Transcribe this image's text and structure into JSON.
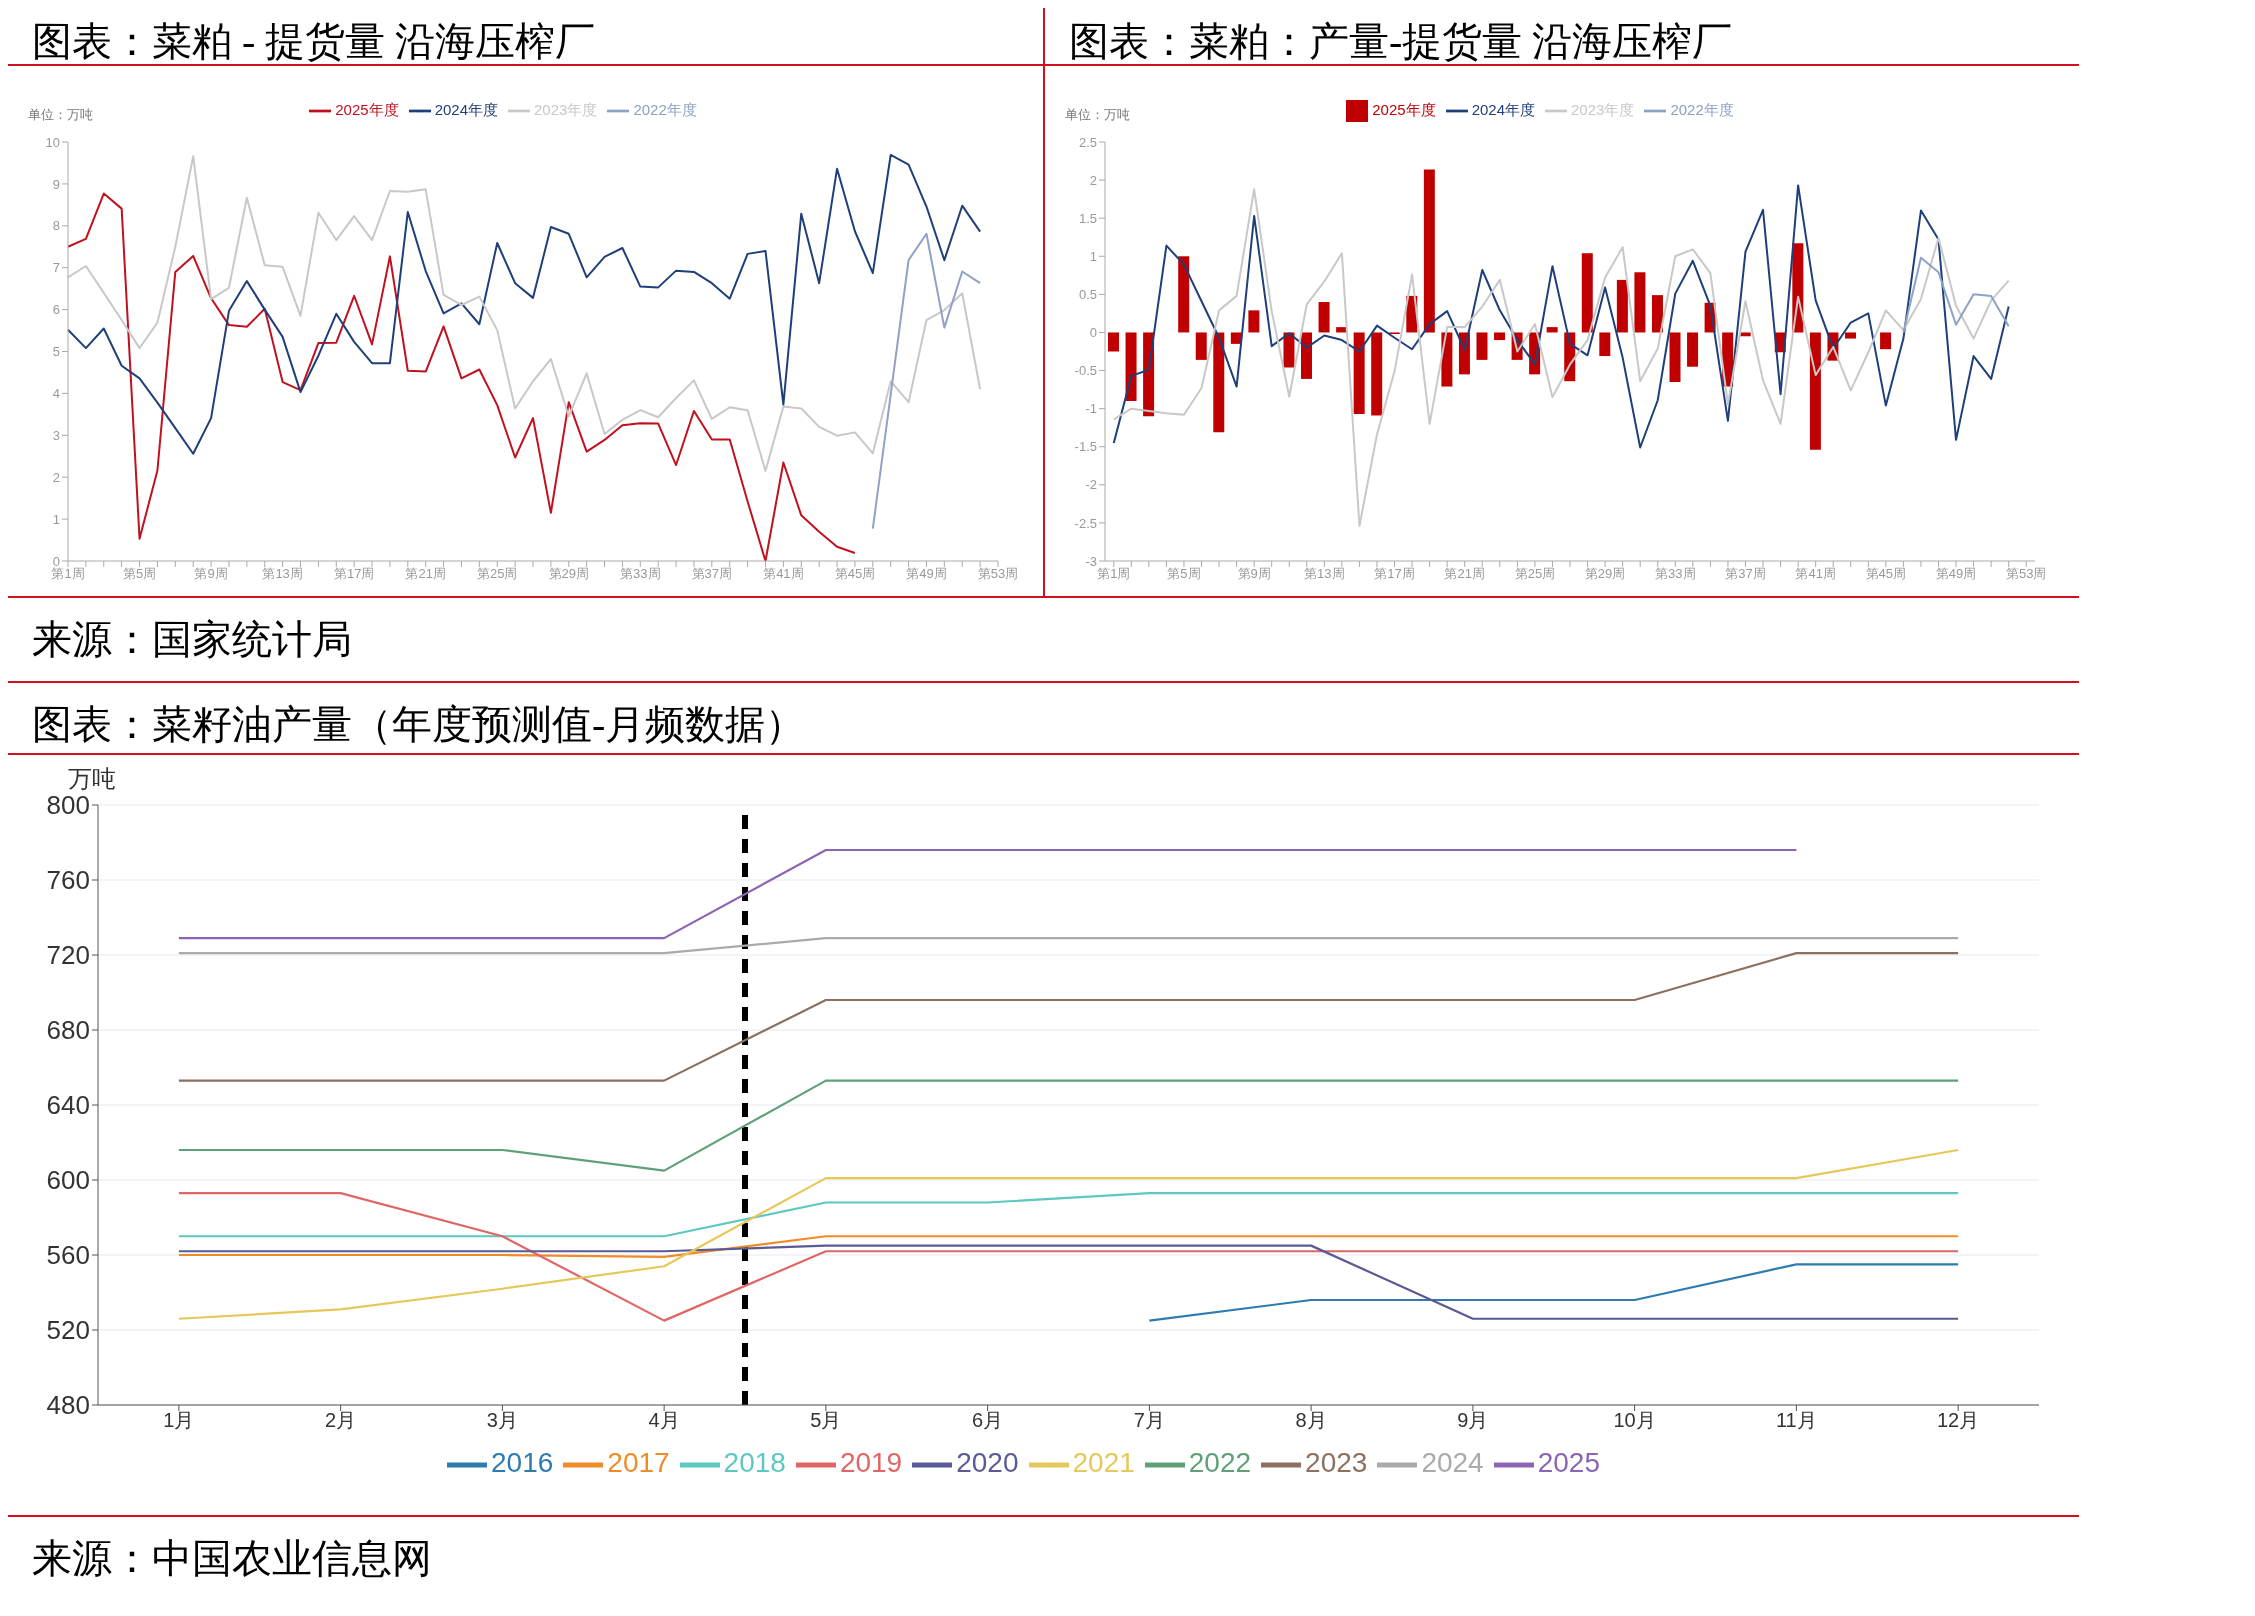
{
  "chart_data": [
    {
      "type": "line",
      "title": "图表：菜粕 - 提货量 沿海压榨厂",
      "ylabel": "单位：万吨",
      "legend": "top",
      "marker": "none",
      "categories": [
        "第1周",
        null,
        null,
        null,
        "第5周",
        null,
        null,
        null,
        "第9周",
        null,
        null,
        null,
        "第13周",
        null,
        null,
        null,
        "第17周",
        null,
        null,
        null,
        "第21周",
        null,
        null,
        null,
        "第25周",
        null,
        null,
        null,
        "第29周",
        null,
        null,
        null,
        "第33周",
        null,
        null,
        null,
        "第37周",
        null,
        null,
        null,
        "第41周",
        null,
        null,
        null,
        "第45周",
        null,
        null,
        null,
        "第49周",
        null,
        null,
        null,
        "第53周"
      ],
      "ylim": [
        0,
        10
      ],
      "yticks": [
        0,
        1,
        2,
        3,
        4,
        5,
        6,
        7,
        8,
        9,
        10
      ],
      "annotations": [
        "来源：国家统计局"
      ],
      "series": [
        {
          "name": "2025年度",
          "color": "#c0111f",
          "values": [
            7.5,
            7.69,
            8.77,
            8.41,
            0.53,
            2.16,
            6.9,
            7.28,
            6.27,
            5.63,
            5.59,
            6.02,
            4.27,
            4.08,
            5.2,
            5.21,
            6.33,
            5.17,
            7.27,
            4.54,
            4.52,
            5.6,
            4.36,
            4.57,
            3.72,
            2.47,
            3.41,
            1.15,
            3.79,
            2.61,
            2.89,
            3.24,
            3.29,
            3.28,
            2.29,
            3.58,
            2.9,
            2.9,
            1.42,
            0,
            2.35,
            1.09,
            0.7,
            0.34,
            0.19,
            null,
            null,
            null,
            null,
            null,
            null,
            null,
            null
          ]
        },
        {
          "name": "2024年度",
          "color": "#1f3f7a",
          "values": [
            5.52,
            5.08,
            5.55,
            4.66,
            4.36,
            3.78,
            3.17,
            2.56,
            3.41,
            5.97,
            6.68,
            6.0,
            5.35,
            4.03,
            4.9,
            5.9,
            5.23,
            4.72,
            4.72,
            8.33,
            6.92,
            5.91,
            6.15,
            5.65,
            7.59,
            6.63,
            6.28,
            7.97,
            7.81,
            6.77,
            7.26,
            7.47,
            6.55,
            6.53,
            6.93,
            6.9,
            6.63,
            6.26,
            7.33,
            7.4,
            3.73,
            8.29,
            6.63,
            9.36,
            7.87,
            6.87,
            9.69,
            9.46,
            8.46,
            7.18,
            8.48,
            7.86,
            null
          ]
        },
        {
          "name": "2023年度",
          "color": "#c8c8c8",
          "values": [
            6.77,
            7.04,
            6.4,
            5.75,
            5.08,
            5.69,
            7.5,
            9.66,
            6.25,
            6.52,
            8.67,
            7.06,
            7.02,
            5.85,
            8.31,
            7.66,
            8.23,
            7.66,
            8.83,
            8.81,
            8.87,
            6.35,
            6.11,
            6.31,
            5.51,
            3.64,
            4.29,
            4.82,
            3.45,
            4.48,
            3.03,
            3.37,
            3.6,
            3.43,
            3.89,
            4.31,
            3.39,
            3.67,
            3.6,
            2.15,
            3.69,
            3.64,
            3.2,
            2.99,
            3.07,
            2.57,
            4.29,
            3.79,
            5.75,
            5.99,
            6.39,
            4.1,
            null
          ]
        },
        {
          "name": "2022年度",
          "color": "#8ea2c6",
          "values": [
            null,
            null,
            null,
            null,
            null,
            null,
            null,
            null,
            null,
            null,
            null,
            null,
            null,
            null,
            null,
            null,
            null,
            null,
            null,
            null,
            null,
            null,
            null,
            null,
            null,
            null,
            null,
            null,
            null,
            null,
            null,
            null,
            null,
            null,
            null,
            null,
            null,
            null,
            null,
            null,
            null,
            null,
            null,
            null,
            null,
            0.77,
            3.97,
            7.18,
            7.81,
            5.57,
            6.91,
            6.63,
            null
          ]
        }
      ]
    },
    {
      "type": "bar",
      "title": "图表：菜粕：产量-提货量 沿海压榨厂",
      "ylabel": "单位：万吨",
      "legend": "top",
      "marker": "none",
      "categories": [
        "第1周",
        null,
        null,
        null,
        "第5周",
        null,
        null,
        null,
        "第9周",
        null,
        null,
        null,
        "第13周",
        null,
        null,
        null,
        "第17周",
        null,
        null,
        null,
        "第21周",
        null,
        null,
        null,
        "第25周",
        null,
        null,
        null,
        "第29周",
        null,
        null,
        null,
        "第33周",
        null,
        null,
        null,
        "第37周",
        null,
        null,
        null,
        "第41周",
        null,
        null,
        null,
        "第45周",
        null,
        null,
        null,
        "第49周",
        null,
        null,
        null,
        "第53周"
      ],
      "ylim": [
        -3,
        2.5
      ],
      "yticks": [
        -3,
        -2.5,
        -2,
        -1.5,
        -1,
        -0.5,
        0,
        0.5,
        1,
        1.5,
        2,
        2.5
      ],
      "series": [
        {
          "name": "2025年度",
          "color": "#c00000",
          "values": [
            -0.25,
            -0.9,
            -1.1,
            null,
            1.0,
            -0.36,
            -1.31,
            -0.15,
            0.29,
            null,
            -0.46,
            -0.61,
            0.4,
            0.07,
            -1.07,
            -1.09,
            -0.02,
            0.48,
            2.14,
            -0.71,
            -0.55,
            -0.36,
            -0.1,
            -0.36,
            -0.55,
            0.07,
            -0.64,
            1.04,
            -0.31,
            0.69,
            0.79,
            0.49,
            -0.65,
            -0.45,
            0.39,
            -0.71,
            -0.05,
            null,
            -0.26,
            1.17,
            -1.54,
            -0.37,
            -0.08,
            null,
            -0.22,
            null,
            null,
            null,
            null,
            null,
            null,
            null,
            null
          ]
        },
        {
          "name": "2024年度",
          "type": "line",
          "color": "#1f3f7a",
          "values": [
            -1.45,
            -0.57,
            -0.49,
            1.14,
            0.89,
            0.41,
            -0.07,
            -0.71,
            1.53,
            -0.18,
            -0.01,
            -0.2,
            -0.04,
            -0.1,
            -0.25,
            0.09,
            -0.07,
            -0.22,
            0.11,
            0.28,
            -0.23,
            0.82,
            0.29,
            -0.1,
            -0.42,
            0.87,
            -0.15,
            -0.3,
            0.59,
            -0.33,
            -1.51,
            -0.89,
            0.51,
            0.94,
            0.35,
            -1.16,
            1.06,
            1.61,
            -0.81,
            1.93,
            0.42,
            -0.21,
            0.13,
            0.25,
            -0.96,
            -0.08,
            1.6,
            1.22,
            -1.41,
            -0.31,
            -0.61,
            0.34,
            null
          ]
        },
        {
          "name": "2023年度",
          "type": "line",
          "color": "#c8c8c8",
          "values": [
            -1.14,
            -1.0,
            -1.03,
            -1.06,
            -1.08,
            -0.73,
            0.29,
            0.48,
            1.88,
            0.28,
            -0.84,
            0.37,
            0.67,
            1.04,
            -2.54,
            -1.34,
            -0.51,
            0.76,
            -1.2,
            0.07,
            0.07,
            0.34,
            0.69,
            -0.25,
            0.11,
            -0.85,
            -0.42,
            -0.1,
            0.72,
            1.12,
            -0.64,
            -0.21,
            1.0,
            1.09,
            0.78,
            -0.94,
            0.41,
            -0.63,
            -1.2,
            0.47,
            -0.56,
            -0.19,
            -0.76,
            -0.26,
            0.29,
            0.03,
            0.44,
            1.24,
            0.35,
            -0.08,
            0.42,
            0.68,
            null
          ]
        },
        {
          "name": "2022年度",
          "type": "line",
          "color": "#8ea2c6",
          "values": [
            null,
            null,
            null,
            null,
            null,
            null,
            null,
            null,
            null,
            null,
            null,
            null,
            null,
            null,
            null,
            null,
            null,
            null,
            null,
            null,
            null,
            null,
            null,
            null,
            null,
            null,
            null,
            null,
            null,
            null,
            null,
            null,
            null,
            null,
            null,
            null,
            null,
            null,
            null,
            null,
            null,
            null,
            null,
            null,
            null,
            0.0,
            0.98,
            0.79,
            0.1,
            0.5,
            0.48,
            0.08,
            null
          ]
        }
      ]
    },
    {
      "type": "line",
      "title": "图表：菜籽油产量（年度预测值-月频数据）",
      "ylabel": "万吨",
      "legend": "bottom",
      "marker": "none",
      "grid": "y",
      "x": [
        1,
        2,
        3,
        4,
        5,
        6,
        7,
        8,
        9,
        10,
        11,
        12
      ],
      "xlim": [
        0.5,
        12.5
      ],
      "xticks": [
        {
          "value": 1,
          "label": "1月"
        },
        {
          "value": 2,
          "label": "2月"
        },
        {
          "value": 3,
          "label": "3月"
        },
        {
          "value": 4,
          "label": "4月"
        },
        {
          "value": 5,
          "label": "5月"
        },
        {
          "value": 6,
          "label": "6月"
        },
        {
          "value": 7,
          "label": "7月"
        },
        {
          "value": 8,
          "label": "8月"
        },
        {
          "value": 9,
          "label": "9月"
        },
        {
          "value": 10,
          "label": "10月"
        },
        {
          "value": 11,
          "label": "11月"
        },
        {
          "value": 12,
          "label": "12月"
        }
      ],
      "ylim": [
        480,
        800
      ],
      "yticks": [
        480,
        520,
        560,
        600,
        640,
        680,
        720,
        760,
        800
      ],
      "ref_lines": [
        {
          "axis": "x",
          "value": 4.5,
          "color": "#000000",
          "line_style": "dashed"
        }
      ],
      "annotations": [
        "来源：中国农业信息网"
      ],
      "series": [
        {
          "name": "2016",
          "color": "#2e7bb0",
          "values": [
            null,
            null,
            null,
            null,
            null,
            null,
            525,
            536,
            536,
            536,
            555,
            555
          ]
        },
        {
          "name": "2017",
          "color": "#f08c28",
          "values": [
            560,
            560,
            560,
            559,
            570,
            570,
            570,
            570,
            570,
            570,
            570,
            570
          ]
        },
        {
          "name": "2018",
          "color": "#5cc8c0",
          "values": [
            570,
            570,
            570,
            570,
            588,
            588,
            593,
            593,
            593,
            593,
            593,
            593
          ]
        },
        {
          "name": "2019",
          "color": "#e06666",
          "values": [
            593,
            593,
            570,
            525,
            562,
            562,
            562,
            562,
            562,
            562,
            562,
            562
          ]
        },
        {
          "name": "2020",
          "color": "#5a5a96",
          "values": [
            562,
            562,
            562,
            562,
            565,
            565,
            565,
            565,
            526,
            526,
            526,
            526
          ]
        },
        {
          "name": "2021",
          "color": "#e6c85a",
          "values": [
            526,
            531,
            542,
            554,
            601,
            601,
            601,
            601,
            601,
            601,
            601,
            616
          ]
        },
        {
          "name": "2022",
          "color": "#5fa078",
          "values": [
            616,
            616,
            616,
            605,
            653,
            653,
            653,
            653,
            653,
            653,
            653,
            653
          ]
        },
        {
          "name": "2023",
          "color": "#8c7060",
          "values": [
            653,
            653,
            653,
            653,
            696,
            696,
            696,
            696,
            696,
            696,
            721,
            721
          ]
        },
        {
          "name": "2024",
          "color": "#aaaaaa",
          "values": [
            721,
            721,
            721,
            721,
            729,
            729,
            729,
            729,
            729,
            729,
            729,
            729
          ]
        },
        {
          "name": "2025",
          "color": "#8c64b4",
          "values": [
            729,
            729,
            729,
            729,
            776,
            776,
            776,
            776,
            776,
            776,
            776,
            null
          ]
        }
      ]
    }
  ]
}
